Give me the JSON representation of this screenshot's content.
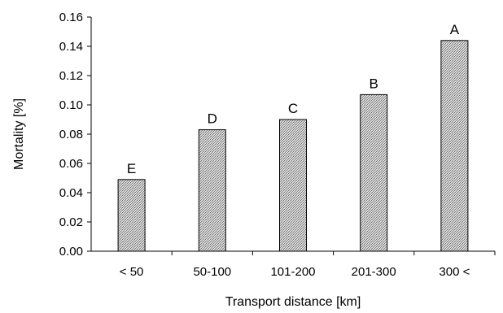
{
  "chart_data": {
    "type": "bar",
    "xlabel": "Transport distance [km]",
    "ylabel": "Mortality [%]",
    "categories": [
      "< 50",
      "50-100",
      "101-200",
      "201-300",
      "300 <"
    ],
    "values": [
      0.049,
      0.083,
      0.09,
      0.107,
      0.144
    ],
    "bar_labels": [
      "E",
      "D",
      "C",
      "B",
      "A"
    ],
    "ylim": [
      0,
      0.16
    ],
    "yticks": [
      "0.00",
      "0.02",
      "0.04",
      "0.06",
      "0.08",
      "0.10",
      "0.12",
      "0.14",
      "0.16"
    ],
    "grid": false,
    "bar_fill": "#b0b0b0"
  }
}
